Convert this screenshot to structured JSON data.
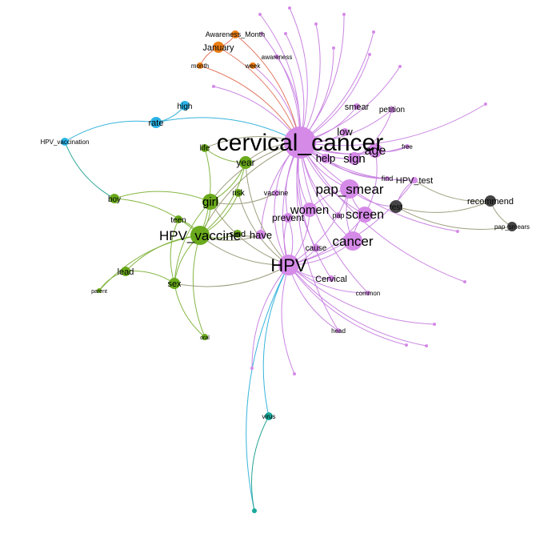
{
  "colors": {
    "purple": "#d58ae8",
    "green": "#6aaa1c",
    "cyan": "#2bb3e6",
    "orange": "#ea7d14",
    "dark": "#444444",
    "teal": "#1aa89a",
    "edge_purple": "#c77fe0",
    "edge_green": "#7fb23a",
    "edge_olive": "#9a9a7a",
    "edge_red": "#e0735a",
    "edge_cyan": "#2db0d9",
    "edge_teal": "#1aa08e"
  },
  "nodes": [
    {
      "id": "cervical_cancer",
      "label": "cervical_cancer",
      "group": "purple"
    },
    {
      "id": "HPV",
      "label": "HPV",
      "group": "purple"
    },
    {
      "id": "pap_smear",
      "label": "pap_smear",
      "group": "purple"
    },
    {
      "id": "cancer",
      "label": "cancer",
      "group": "purple"
    },
    {
      "id": "screen",
      "label": "screen",
      "group": "purple"
    },
    {
      "id": "women",
      "label": "women",
      "group": "purple"
    },
    {
      "id": "age",
      "label": "age",
      "group": "purple"
    },
    {
      "id": "sign",
      "label": "sign",
      "group": "purple"
    },
    {
      "id": "help",
      "label": "help",
      "group": "purple"
    },
    {
      "id": "low",
      "label": "low",
      "group": "purple"
    },
    {
      "id": "smear",
      "label": "smear",
      "group": "purple"
    },
    {
      "id": "petition",
      "label": "petition",
      "group": "purple"
    },
    {
      "id": "free",
      "label": "free",
      "group": "purple"
    },
    {
      "id": "HPV_test",
      "label": "HPV_test",
      "group": "purple"
    },
    {
      "id": "find",
      "label": "find",
      "group": "purple"
    },
    {
      "id": "vaccine",
      "label": "vaccine",
      "group": "purple"
    },
    {
      "id": "prevent",
      "label": "prevent",
      "group": "purple"
    },
    {
      "id": "pap",
      "label": "pap",
      "group": "purple"
    },
    {
      "id": "cause",
      "label": "cause",
      "group": "purple"
    },
    {
      "id": "Cervical",
      "label": "Cervical",
      "group": "purple"
    },
    {
      "id": "common",
      "label": "common",
      "group": "purple"
    },
    {
      "id": "head",
      "label": "head",
      "group": "purple"
    },
    {
      "id": "awareness",
      "label": "awareness",
      "group": "purple"
    },
    {
      "id": "have",
      "label": "have",
      "group": "purple"
    },
    {
      "id": "HPV_vaccine",
      "label": "HPV_vaccine",
      "group": "green"
    },
    {
      "id": "girl",
      "label": "girl",
      "group": "green"
    },
    {
      "id": "year",
      "label": "year",
      "group": "green"
    },
    {
      "id": "life",
      "label": "life",
      "group": "green"
    },
    {
      "id": "risk",
      "label": "risk",
      "group": "green"
    },
    {
      "id": "boy",
      "label": "boy",
      "group": "green"
    },
    {
      "id": "teen",
      "label": "teen",
      "group": "green"
    },
    {
      "id": "lead",
      "label": "lead",
      "group": "green"
    },
    {
      "id": "parent",
      "label": "parent",
      "group": "green"
    },
    {
      "id": "sex",
      "label": "sex",
      "group": "green"
    },
    {
      "id": "oral",
      "label": "oral",
      "group": "green"
    },
    {
      "id": "sind",
      "label": "sind",
      "group": "green"
    },
    {
      "id": "high",
      "label": "high",
      "group": "cyan"
    },
    {
      "id": "rate",
      "label": "rate",
      "group": "cyan"
    },
    {
      "id": "HPV_vaccination",
      "label": "HPV_vaccination",
      "group": "cyan"
    },
    {
      "id": "Awareness_Month",
      "label": "Awareness_Month",
      "group": "orange"
    },
    {
      "id": "January",
      "label": "January",
      "group": "orange"
    },
    {
      "id": "month",
      "label": "month",
      "group": "orange"
    },
    {
      "id": "week",
      "label": "week",
      "group": "orange"
    },
    {
      "id": "test",
      "label": "test",
      "group": "dark"
    },
    {
      "id": "recommend",
      "label": "recommend",
      "group": "dark"
    },
    {
      "id": "pap_smears",
      "label": "pap_smears",
      "group": "dark"
    },
    {
      "id": "virus",
      "label": "virus",
      "group": "teal"
    },
    {
      "id": "t1",
      "label": "",
      "group": "purple"
    },
    {
      "id": "t2",
      "label": "",
      "group": "purple"
    },
    {
      "id": "t3",
      "label": "",
      "group": "purple"
    },
    {
      "id": "t4",
      "label": "",
      "group": "purple"
    },
    {
      "id": "t5",
      "label": "",
      "group": "purple"
    },
    {
      "id": "t6",
      "label": "",
      "group": "purple"
    },
    {
      "id": "t7",
      "label": "",
      "group": "purple"
    },
    {
      "id": "t8",
      "label": "",
      "group": "purple"
    },
    {
      "id": "t9",
      "label": "",
      "group": "purple"
    },
    {
      "id": "t10",
      "label": "",
      "group": "purple"
    },
    {
      "id": "t11",
      "label": "",
      "group": "purple"
    },
    {
      "id": "t12",
      "label": "",
      "group": "purple"
    },
    {
      "id": "t13",
      "label": "",
      "group": "purple"
    },
    {
      "id": "t14",
      "label": "",
      "group": "purple"
    },
    {
      "id": "t15",
      "label": "",
      "group": "purple"
    },
    {
      "id": "t16",
      "label": "",
      "group": "purple"
    },
    {
      "id": "t17",
      "label": "",
      "group": "purple"
    },
    {
      "id": "t18",
      "label": "",
      "group": "purple"
    },
    {
      "id": "t19",
      "label": "",
      "group": "purple"
    },
    {
      "id": "t20",
      "label": "",
      "group": "teal"
    }
  ],
  "edges": [
    [
      "cervical_cancer",
      "HPV",
      "edge_purple"
    ],
    [
      "cervical_cancer",
      "pap_smear",
      "edge_purple"
    ],
    [
      "cervical_cancer",
      "cancer",
      "edge_purple"
    ],
    [
      "cervical_cancer",
      "screen",
      "edge_purple"
    ],
    [
      "cervical_cancer",
      "women",
      "edge_purple"
    ],
    [
      "cervical_cancer",
      "age",
      "edge_purple"
    ],
    [
      "cervical_cancer",
      "sign",
      "edge_purple"
    ],
    [
      "cervical_cancer",
      "help",
      "edge_purple"
    ],
    [
      "cervical_cancer",
      "low",
      "edge_purple"
    ],
    [
      "cervical_cancer",
      "smear",
      "edge_purple"
    ],
    [
      "cervical_cancer",
      "petition",
      "edge_purple"
    ],
    [
      "cervical_cancer",
      "free",
      "edge_purple"
    ],
    [
      "cervical_cancer",
      "HPV_test",
      "edge_purple"
    ],
    [
      "cervical_cancer",
      "find",
      "edge_purple"
    ],
    [
      "cervical_cancer",
      "vaccine",
      "edge_purple"
    ],
    [
      "cervical_cancer",
      "prevent",
      "edge_purple"
    ],
    [
      "cervical_cancer",
      "pap",
      "edge_purple"
    ],
    [
      "cervical_cancer",
      "cause",
      "edge_purple"
    ],
    [
      "cervical_cancer",
      "Cervical",
      "edge_purple"
    ],
    [
      "cervical_cancer",
      "common",
      "edge_purple"
    ],
    [
      "cervical_cancer",
      "head",
      "edge_purple"
    ],
    [
      "cervical_cancer",
      "awareness",
      "edge_purple"
    ],
    [
      "cervical_cancer",
      "week",
      "edge_purple"
    ],
    [
      "cervical_cancer",
      "have",
      "edge_purple"
    ],
    [
      "cervical_cancer",
      "t1",
      "edge_purple"
    ],
    [
      "cervical_cancer",
      "t2",
      "edge_purple"
    ],
    [
      "cervical_cancer",
      "t3",
      "edge_purple"
    ],
    [
      "cervical_cancer",
      "t4",
      "edge_purple"
    ],
    [
      "cervical_cancer",
      "t5",
      "edge_purple"
    ],
    [
      "cervical_cancer",
      "t6",
      "edge_purple"
    ],
    [
      "cervical_cancer",
      "t7",
      "edge_purple"
    ],
    [
      "cervical_cancer",
      "t8",
      "edge_purple"
    ],
    [
      "cervical_cancer",
      "t9",
      "edge_purple"
    ],
    [
      "cervical_cancer",
      "t10",
      "edge_purple"
    ],
    [
      "cervical_cancer",
      "t11",
      "edge_purple"
    ],
    [
      "cervical_cancer",
      "t12",
      "edge_purple"
    ],
    [
      "cervical_cancer",
      "t13",
      "edge_purple"
    ],
    [
      "cervical_cancer",
      "t14",
      "edge_purple"
    ],
    [
      "HPV",
      "t15",
      "edge_purple"
    ],
    [
      "HPV",
      "t16",
      "edge_purple"
    ],
    [
      "HPV",
      "t17",
      "edge_purple"
    ],
    [
      "HPV",
      "t18",
      "edge_purple"
    ],
    [
      "HPV",
      "t19",
      "edge_purple"
    ],
    [
      "HPV",
      "cancer",
      "edge_purple"
    ],
    [
      "HPV",
      "women",
      "edge_purple"
    ],
    [
      "HPV",
      "screen",
      "edge_purple"
    ],
    [
      "HPV",
      "cause",
      "edge_purple"
    ],
    [
      "HPV",
      "Cervical",
      "edge_purple"
    ],
    [
      "HPV",
      "common",
      "edge_purple"
    ],
    [
      "HPV",
      "head",
      "edge_purple"
    ],
    [
      "HPV",
      "pap_smear",
      "edge_purple"
    ],
    [
      "HPV",
      "HPV_test",
      "edge_purple"
    ],
    [
      "HPV",
      "prevent",
      "edge_purple"
    ],
    [
      "HPV",
      "virus",
      "edge_cyan"
    ],
    [
      "HPV",
      "t20",
      "edge_cyan"
    ],
    [
      "virus",
      "t20",
      "edge_teal"
    ],
    [
      "pap_smear",
      "screen",
      "edge_purple"
    ],
    [
      "pap_smear",
      "cancer",
      "edge_purple"
    ],
    [
      "pap_smear",
      "women",
      "edge_purple"
    ],
    [
      "screen",
      "cancer",
      "edge_purple"
    ],
    [
      "screen",
      "age",
      "edge_purple"
    ],
    [
      "sign",
      "petition",
      "edge_purple"
    ],
    [
      "help",
      "find",
      "edge_purple"
    ],
    [
      "age",
      "free",
      "edge_purple"
    ],
    [
      "HPV_test",
      "test",
      "edge_purple"
    ],
    [
      "pap_smear",
      "test",
      "edge_purple"
    ],
    [
      "test",
      "recommend",
      "edge_olive"
    ],
    [
      "test",
      "pap_smears",
      "edge_olive"
    ],
    [
      "recommend",
      "pap_smears",
      "edge_olive"
    ],
    [
      "HPV_test",
      "recommend",
      "edge_olive"
    ],
    [
      "cervical_cancer",
      "girl",
      "edge_olive"
    ],
    [
      "cervical_cancer",
      "HPV_vaccine",
      "edge_olive"
    ],
    [
      "cervical_cancer",
      "year",
      "edge_olive"
    ],
    [
      "cervical_cancer",
      "life",
      "edge_olive"
    ],
    [
      "cervical_cancer",
      "rate",
      "edge_cyan"
    ],
    [
      "cervical_cancer",
      "Awareness_Month",
      "edge_red"
    ],
    [
      "cervical_cancer",
      "January",
      "edge_red"
    ],
    [
      "cervical_cancer",
      "month",
      "edge_red"
    ],
    [
      "January",
      "Awareness_Month",
      "edge_red"
    ],
    [
      "January",
      "month",
      "edge_red"
    ],
    [
      "rate",
      "high",
      "edge_cyan"
    ],
    [
      "rate",
      "HPV_vaccination",
      "edge_cyan"
    ],
    [
      "HPV_vaccination",
      "boy",
      "edge_teal"
    ],
    [
      "HPV_vaccine",
      "girl",
      "edge_green"
    ],
    [
      "HPV_vaccine",
      "boy",
      "edge_green"
    ],
    [
      "HPV_vaccine",
      "teen",
      "edge_green"
    ],
    [
      "HPV_vaccine",
      "lead",
      "edge_green"
    ],
    [
      "HPV_vaccine",
      "parent",
      "edge_green"
    ],
    [
      "HPV_vaccine",
      "sex",
      "edge_green"
    ],
    [
      "HPV_vaccine",
      "oral",
      "edge_green"
    ],
    [
      "HPV_vaccine",
      "year",
      "edge_green"
    ],
    [
      "HPV_vaccine",
      "life",
      "edge_green"
    ],
    [
      "HPV_vaccine",
      "risk",
      "edge_green"
    ],
    [
      "HPV_vaccine",
      "sind",
      "edge_green"
    ],
    [
      "HPV_vaccine",
      "HPV",
      "edge_olive"
    ],
    [
      "HPV_vaccine",
      "have",
      "edge_olive"
    ],
    [
      "girl",
      "sex",
      "edge_green"
    ],
    [
      "girl",
      "year",
      "edge_green"
    ],
    [
      "girl",
      "boy",
      "edge_green"
    ],
    [
      "girl",
      "HPV",
      "edge_olive"
    ],
    [
      "girl",
      "vaccine",
      "edge_olive"
    ],
    [
      "sex",
      "oral",
      "edge_green"
    ],
    [
      "sex",
      "lead",
      "edge_green"
    ],
    [
      "sex",
      "HPV",
      "edge_olive"
    ],
    [
      "lead",
      "parent",
      "edge_green"
    ],
    [
      "life",
      "year",
      "edge_green"
    ],
    [
      "year",
      "HPV",
      "edge_olive"
    ],
    [
      "sind",
      "have",
      "edge_olive"
    ],
    [
      "risk",
      "HPV",
      "edge_olive"
    ],
    [
      "teen",
      "sex",
      "edge_green"
    ],
    [
      "vaccine",
      "HPV",
      "edge_purple"
    ],
    [
      "prevent",
      "HPV",
      "edge_purple"
    ]
  ]
}
